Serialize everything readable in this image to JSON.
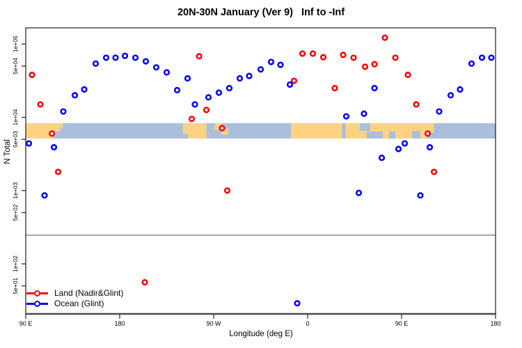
{
  "chart_data": {
    "type": "scatter",
    "title": "20N-30N January (Ver 9)   Inf to -Inf",
    "xlabel": "Longitude (deg E)",
    "ylabel": "N Total",
    "x_axis": {
      "note": "longitude axis spans 450 deg starting at 90E; series points with lon 90E-180E are drawn again at the right end",
      "range_t": [
        90,
        540
      ],
      "ticks": [
        {
          "t": 90,
          "label": "90 E"
        },
        {
          "t": 180,
          "label": "180"
        },
        {
          "t": 270,
          "label": "90 W"
        },
        {
          "t": 360,
          "label": "0"
        },
        {
          "t": 450,
          "label": "90 E"
        },
        {
          "t": 540,
          "label": "180"
        }
      ]
    },
    "y_axis": {
      "scale": "log",
      "ticks": [
        {
          "value": 100000,
          "label": "1e+05"
        },
        {
          "value": 50000,
          "label": "5e+04"
        },
        {
          "value": 10000,
          "label": "1e+04"
        },
        {
          "value": 5000,
          "label": "5e+03"
        },
        {
          "value": 1000,
          "label": "1e+03"
        },
        {
          "value": 500,
          "label": "5e+02"
        },
        {
          "value": 100,
          "label": "1e+02"
        },
        {
          "value": 50,
          "label": "5e+01"
        }
      ]
    },
    "reference_line": {
      "value": 246,
      "color": "#A3A3A3"
    },
    "map_band": {
      "value_top": 8310,
      "value_bottom": 5130,
      "ocean_color": "#ABBEDC",
      "land_color": "#FBD383",
      "land_segments": [
        {
          "t0": 90,
          "t1": 116,
          "y0": 0,
          "y1": 1
        },
        {
          "t0": 116,
          "t1": 123,
          "y0": 0,
          "y1": 0.55
        },
        {
          "t0": 123.5,
          "t1": 125.5,
          "y0": 0,
          "y1": 0.3
        },
        {
          "t0": 240.5,
          "t1": 245.5,
          "y0": 0,
          "y1": 0.7
        },
        {
          "t0": 245.5,
          "t1": 263,
          "y0": 0,
          "y1": 1
        },
        {
          "t0": 271,
          "t1": 277.5,
          "y0": 0,
          "y1": 0.45
        },
        {
          "t0": 277,
          "t1": 284,
          "y0": 0.35,
          "y1": 0.75
        },
        {
          "t0": 344,
          "t1": 481,
          "y0": 0,
          "y1": 1
        }
      ],
      "ocean_cutouts": [
        {
          "t0": 393,
          "t1": 396.5,
          "y0": 0,
          "y1": 1
        },
        {
          "t0": 410,
          "t1": 420,
          "y0": 0,
          "y1": 0.5
        },
        {
          "t0": 416.5,
          "t1": 432,
          "y0": 0.55,
          "y1": 1
        },
        {
          "t0": 438,
          "t1": 444,
          "y0": 0.55,
          "y1": 1
        },
        {
          "t0": 460,
          "t1": 468,
          "y0": 0.5,
          "y1": 1
        },
        {
          "t0": 474,
          "t1": 481,
          "y0": 0.6,
          "y1": 1
        }
      ]
    },
    "series": [
      {
        "name": "Land (Nadir&Glint)",
        "color": "#FF0000",
        "points": [
          {
            "lon": 96,
            "n": 38000
          },
          {
            "lon": 104,
            "n": 15000
          },
          {
            "lon": 115,
            "n": 6000
          },
          {
            "lon": 121,
            "n": 1800
          },
          {
            "lon": -156,
            "n": 56
          },
          {
            "lon": -111,
            "n": 9500
          },
          {
            "lon": -104,
            "n": 68000
          },
          {
            "lon": -97,
            "n": 12600
          },
          {
            "lon": -82,
            "n": 7100
          },
          {
            "lon": -77,
            "n": 1000
          },
          {
            "lon": -13,
            "n": 31500
          },
          {
            "lon": -5,
            "n": 74000
          },
          {
            "lon": 5,
            "n": 74000
          },
          {
            "lon": 15,
            "n": 66000
          },
          {
            "lon": 26,
            "n": 25000
          },
          {
            "lon": 34,
            "n": 71000
          },
          {
            "lon": 44,
            "n": 65000
          },
          {
            "lon": 55,
            "n": 49000
          },
          {
            "lon": 64,
            "n": 53000
          },
          {
            "lon": 74,
            "n": 122000
          },
          {
            "lon": 84,
            "n": 65000
          }
        ]
      },
      {
        "name": "Ocean (Glint)",
        "color": "#0000FF",
        "points": [
          {
            "lon": 93,
            "n": 4400
          },
          {
            "lon": 108,
            "n": 860
          },
          {
            "lon": 117,
            "n": 3900
          },
          {
            "lon": 126,
            "n": 12000
          },
          {
            "lon": 137,
            "n": 20000
          },
          {
            "lon": 146,
            "n": 24000
          },
          {
            "lon": 157,
            "n": 54000
          },
          {
            "lon": 167,
            "n": 65000
          },
          {
            "lon": 176,
            "n": 65000
          },
          {
            "lon": -175,
            "n": 69000
          },
          {
            "lon": -165,
            "n": 65000
          },
          {
            "lon": -155,
            "n": 58000
          },
          {
            "lon": -145,
            "n": 48000
          },
          {
            "lon": -135,
            "n": 41000
          },
          {
            "lon": -125,
            "n": 23500
          },
          {
            "lon": -115,
            "n": 34000
          },
          {
            "lon": -108,
            "n": 15000
          },
          {
            "lon": -95,
            "n": 18700
          },
          {
            "lon": -85,
            "n": 21700
          },
          {
            "lon": -75,
            "n": 25000
          },
          {
            "lon": -65,
            "n": 34000
          },
          {
            "lon": -56,
            "n": 36700
          },
          {
            "lon": -45,
            "n": 45000
          },
          {
            "lon": -35,
            "n": 57000
          },
          {
            "lon": -26,
            "n": 52000
          },
          {
            "lon": -17,
            "n": 28000
          },
          {
            "lon": -10,
            "n": 29
          },
          {
            "lon": 37,
            "n": 10300
          },
          {
            "lon": 49,
            "n": 930
          },
          {
            "lon": 54,
            "n": 11200
          },
          {
            "lon": 64,
            "n": 25000
          },
          {
            "lon": 71,
            "n": 2800
          },
          {
            "lon": 87,
            "n": 3700
          }
        ]
      }
    ]
  }
}
